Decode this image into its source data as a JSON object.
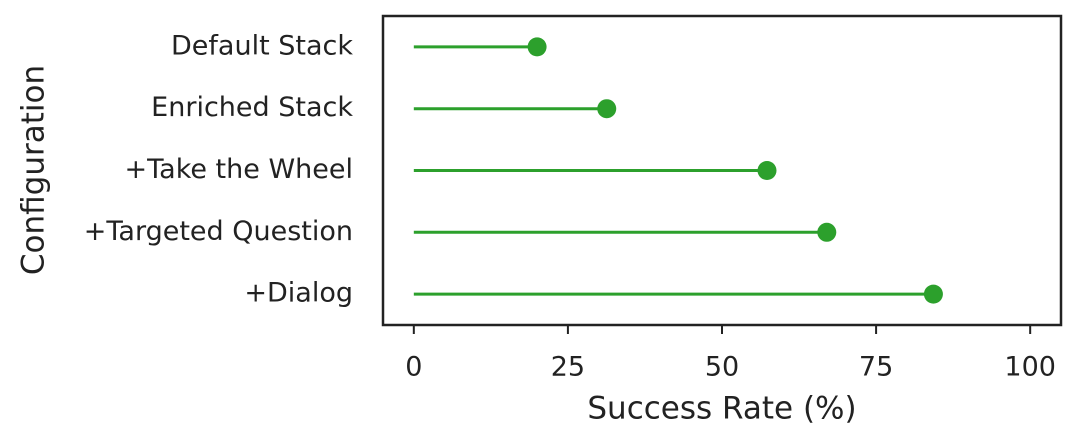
{
  "chart_data": {
    "type": "lollipop",
    "orientation": "horizontal",
    "categories": [
      "Default Stack",
      "Enriched Stack",
      "+Take the Wheel",
      "+Targeted Question",
      "+Dialog"
    ],
    "values": [
      20,
      31.3,
      57.3,
      67,
      84.3
    ],
    "color": "#2ca02c",
    "xlabel": "Success Rate (%)",
    "ylabel": "Configuration",
    "xlim": [
      -5,
      105
    ],
    "xticks": [
      0,
      25,
      50,
      75,
      100
    ],
    "grid": false
  }
}
